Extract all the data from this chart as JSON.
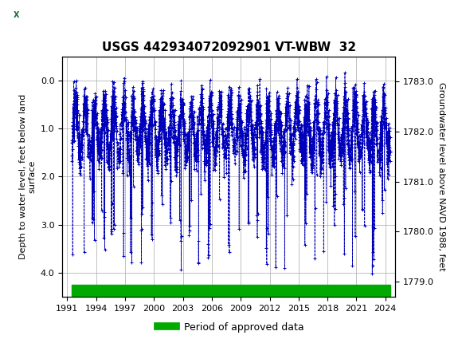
{
  "title": "USGS 442934072092901 VT-WBW  32",
  "ylabel_left": "Depth to water level, feet below land\nsurface",
  "ylabel_right": "Groundwater level above NAVD 1988, feet",
  "ylim_left": [
    4.5,
    -0.5
  ],
  "ylim_right": [
    1778.7,
    1783.5
  ],
  "xlim": [
    1990.5,
    2025.0
  ],
  "xticks": [
    1991,
    1994,
    1997,
    2000,
    2003,
    2006,
    2009,
    2012,
    2015,
    2018,
    2021,
    2024
  ],
  "yticks_left": [
    0.0,
    1.0,
    2.0,
    3.0,
    4.0
  ],
  "yticks_right": [
    1779.0,
    1780.0,
    1781.0,
    1782.0,
    1783.0
  ],
  "data_color": "#0000bb",
  "marker": "+",
  "linestyle": "--",
  "linewidth": 0.6,
  "markersize": 3,
  "markeredgewidth": 0.7,
  "grid_color": "#aaaaaa",
  "background_color": "#ffffff",
  "header_bg_color": "#1a6e3c",
  "header_text_color": "#ffffff",
  "approved_bar_color": "#00aa00",
  "legend_label": "Period of approved data",
  "title_fontsize": 11,
  "axis_label_fontsize": 8,
  "tick_fontsize": 8,
  "legend_fontsize": 9,
  "start_year": 1991.5,
  "end_year": 2024.5
}
